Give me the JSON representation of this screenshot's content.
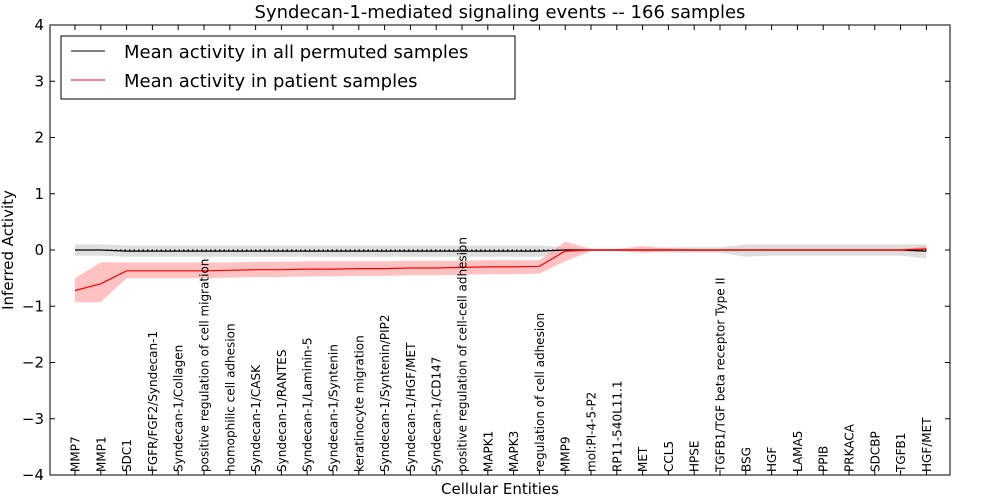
{
  "chart_data": {
    "type": "line",
    "title": "Syndecan-1-mediated signaling events -- 166 samples",
    "xlabel": "Cellular Entities",
    "ylabel": "Inferred Activity",
    "ylim": [
      -4,
      4
    ],
    "yticks": [
      4,
      3,
      2,
      1,
      0,
      -1,
      -2,
      -3,
      -4
    ],
    "ytick_labels": [
      "4",
      "3",
      "2",
      "1",
      "0",
      "−1",
      "−2",
      "−3",
      "−4"
    ],
    "grid": false,
    "legend_position": "top-left",
    "reference_line": 0,
    "categories": [
      "MMP7",
      "MMP1",
      "SDC1",
      "FGFR/FGF2/Syndecan-1",
      "Syndecan-1/Collagen",
      "positive regulation of cell migration",
      "homophilic cell adhesion",
      "Syndecan-1/CASK",
      "Syndecan-1/RANTES",
      "Syndecan-1/Laminin-5",
      "Syndecan-1/Syntenin",
      "keratinocyte migration",
      "Syndecan-1/Syntenin/PIP2",
      "Syndecan-1/HGF/MET",
      "Syndecan-1/CD147",
      "positive regulation of cell-cell adhesion",
      "MAPK1",
      "MAPK3",
      "regulation of cell adhesion",
      "MMP9",
      "mol:PI-4-5-P2",
      "RP11-540L11.1",
      "MET",
      "CCL5",
      "HPSE",
      "TGFB1/TGF beta receptor Type II",
      "BSG",
      "HGF",
      "LAMA5",
      "PPIB",
      "PRKACA",
      "SDCBP",
      "TGFB1",
      "HGF/MET"
    ],
    "series": [
      {
        "name": "Mean activity in all permuted samples",
        "color": "#000000",
        "band_color": "#c8c8c8",
        "values": [
          0.0,
          0.0,
          -0.02,
          -0.02,
          -0.02,
          -0.02,
          -0.02,
          -0.02,
          -0.02,
          -0.02,
          -0.02,
          -0.02,
          -0.02,
          -0.02,
          -0.02,
          -0.02,
          -0.02,
          -0.02,
          -0.02,
          0.0,
          0.0,
          0.0,
          0.0,
          0.0,
          0.0,
          0.0,
          0.0,
          0.0,
          0.0,
          0.0,
          0.0,
          0.0,
          0.0,
          -0.02
        ],
        "lower": [
          -0.1,
          -0.1,
          -0.12,
          -0.12,
          -0.12,
          -0.12,
          -0.12,
          -0.12,
          -0.12,
          -0.12,
          -0.12,
          -0.12,
          -0.12,
          -0.12,
          -0.12,
          -0.12,
          -0.12,
          -0.12,
          -0.12,
          -0.05,
          -0.02,
          -0.02,
          -0.02,
          -0.05,
          -0.05,
          -0.05,
          -0.12,
          -0.1,
          -0.1,
          -0.1,
          -0.1,
          -0.1,
          -0.1,
          -0.15
        ],
        "upper": [
          0.1,
          0.1,
          0.08,
          0.08,
          0.08,
          0.08,
          0.08,
          0.08,
          0.08,
          0.08,
          0.08,
          0.08,
          0.08,
          0.08,
          0.08,
          0.08,
          0.08,
          0.08,
          0.08,
          0.05,
          0.02,
          0.02,
          0.02,
          0.05,
          0.05,
          0.05,
          0.1,
          0.1,
          0.1,
          0.1,
          0.1,
          0.1,
          0.1,
          0.1
        ]
      },
      {
        "name": "Mean activity in patient samples",
        "color": "#ff0000",
        "band_color": "#ff9999",
        "values": [
          -0.72,
          -0.6,
          -0.37,
          -0.37,
          -0.37,
          -0.37,
          -0.36,
          -0.35,
          -0.35,
          -0.34,
          -0.34,
          -0.33,
          -0.33,
          -0.32,
          -0.32,
          -0.31,
          -0.3,
          -0.3,
          -0.29,
          -0.02,
          0.0,
          0.0,
          0.0,
          0.0,
          0.0,
          0.0,
          0.0,
          0.0,
          0.0,
          0.0,
          0.0,
          0.0,
          0.0,
          0.02
        ],
        "lower": [
          -0.93,
          -0.93,
          -0.5,
          -0.5,
          -0.5,
          -0.5,
          -0.49,
          -0.48,
          -0.48,
          -0.47,
          -0.47,
          -0.46,
          -0.46,
          -0.45,
          -0.45,
          -0.44,
          -0.43,
          -0.43,
          -0.42,
          -0.2,
          -0.02,
          -0.02,
          -0.05,
          -0.02,
          -0.02,
          -0.02,
          -0.02,
          -0.02,
          -0.02,
          -0.02,
          -0.02,
          -0.02,
          -0.02,
          -0.03
        ],
        "upper": [
          -0.5,
          -0.22,
          -0.22,
          -0.22,
          -0.22,
          -0.22,
          -0.22,
          -0.21,
          -0.21,
          -0.2,
          -0.2,
          -0.2,
          -0.2,
          -0.19,
          -0.19,
          -0.19,
          -0.18,
          -0.18,
          -0.18,
          0.15,
          0.02,
          0.02,
          0.07,
          0.03,
          0.02,
          0.02,
          0.02,
          0.02,
          0.02,
          0.02,
          0.02,
          0.02,
          0.02,
          0.07
        ]
      }
    ]
  }
}
